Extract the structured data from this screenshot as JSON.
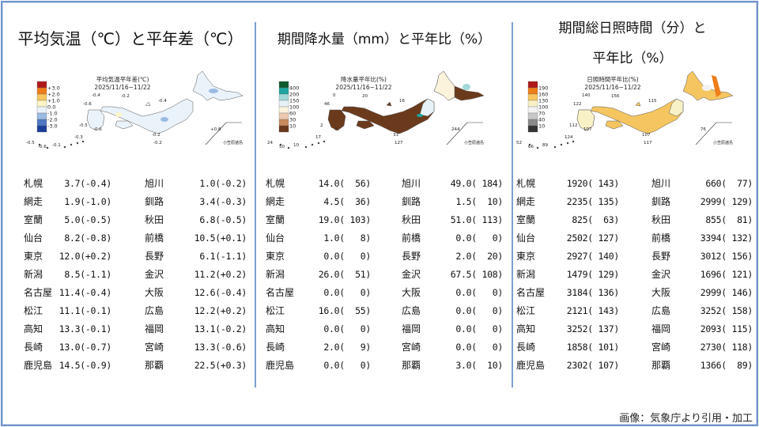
{
  "panels": [
    {
      "title_lines": [
        "平均気温（℃）と平年差（℃）"
      ],
      "map": {
        "title": "平均気温平年差(℃)",
        "period": "2025/11/16~11/22",
        "legend": [
          "+3.0",
          "+2.0",
          "+1.0",
          "0.0",
          "-1.0",
          "-2.0",
          "-3.0"
        ],
        "legend_colors": [
          "#b0181c",
          "#ee7d1a",
          "#f7c660",
          "#fbf4c5",
          "#eaf3fa",
          "#9bbbe2",
          "#4f78c2",
          "#1c3e9a"
        ],
        "land_color": "#eaf3fa",
        "labels": [
          "-0.4",
          "-0.2",
          "-0.4",
          "-0.6",
          "-0.5",
          "-0.6",
          "-0.2",
          "-0.2",
          "-0.5",
          "-0.6",
          "-0.1",
          "-0.3",
          "+0.8"
        ],
        "islands_label": "小笠原諸島"
      },
      "rows": [
        [
          "札幌",
          "3.7(-0.4)",
          "旭川",
          "1.0(-0.2)"
        ],
        [
          "網走",
          "1.9(-1.0)",
          "釧路",
          "3.4(-0.3)"
        ],
        [
          "室蘭",
          "5.0(-0.5)",
          "秋田",
          "6.8(-0.5)"
        ],
        [
          "仙台",
          "8.2(-0.8)",
          "前橋",
          "10.5(+0.1)"
        ],
        [
          "東京",
          "12.0(+0.2)",
          "長野",
          "6.1(-1.1)"
        ],
        [
          "新潟",
          "8.5(-1.1)",
          "金沢",
          "11.2(+0.2)"
        ],
        [
          "名古屋",
          "11.4(-0.4)",
          "大阪",
          "12.6(-0.4)"
        ],
        [
          "松江",
          "11.1(-0.1)",
          "広島",
          "12.2(+0.2)"
        ],
        [
          "高知",
          "13.3(-0.1)",
          "福岡",
          "13.1(-0.2)"
        ],
        [
          "長崎",
          "13.0(-0.7)",
          "宮崎",
          "13.3(-0.6)"
        ],
        [
          "鹿児島",
          "14.5(-0.9)",
          "那覇",
          "22.5(+0.3)"
        ]
      ]
    },
    {
      "title_lines": [
        "期間降水量（mm）と平年比（%）"
      ],
      "map": {
        "title": "降水量平年比(%)",
        "period": "2025/11/16~11/22",
        "legend": [
          "400",
          "200",
          "150",
          "100",
          "60",
          "30",
          "10"
        ],
        "legend_colors": [
          "#0d5a2e",
          "#1fa5a0",
          "#a4d8d8",
          "#e6f2f7",
          "#fbf3dc",
          "#ecc9b0",
          "#c98a5e",
          "#6b3a1c"
        ],
        "land_color": "#6b3a1c",
        "labels": [
          "0",
          "20",
          "16",
          "46",
          "2",
          "0",
          "33",
          "127",
          "24",
          "50",
          "10",
          "17",
          "244"
        ],
        "islands_label": "小笠原諸島"
      },
      "rows": [
        [
          "札幌",
          "14.0(  56)",
          "旭川",
          "49.0( 184)"
        ],
        [
          "網走",
          "4.5(  36)",
          "釧路",
          "1.5(  10)"
        ],
        [
          "室蘭",
          "19.0( 103)",
          "秋田",
          "51.0( 113)"
        ],
        [
          "仙台",
          "1.0(   8)",
          "前橋",
          "0.0(   0)"
        ],
        [
          "東京",
          "0.0(   0)",
          "長野",
          "2.0(  20)"
        ],
        [
          "新潟",
          "26.0(  51)",
          "金沢",
          "67.5( 108)"
        ],
        [
          "名古屋",
          "0.0(   0)",
          "大阪",
          "0.0(   0)"
        ],
        [
          "松江",
          "16.0(  55)",
          "広島",
          "0.0(   0)"
        ],
        [
          "高知",
          "0.0(   0)",
          "福岡",
          "0.0(   0)"
        ],
        [
          "長崎",
          "2.0(   9)",
          "宮崎",
          "0.0(   0)"
        ],
        [
          "鹿児島",
          "0.0(   0)",
          "那覇",
          "3.0(  10)"
        ]
      ]
    },
    {
      "title_lines": [
        "期間総日照時間（分）と",
        "平年比（%）"
      ],
      "map": {
        "title": "日照時間平年比(%)",
        "period": "2025/11/16~11/22",
        "legend": [
          "190",
          "160",
          "130",
          "100",
          "70",
          "40",
          "10"
        ],
        "legend_colors": [
          "#b0181c",
          "#ee7d1a",
          "#f7c660",
          "#f8f1c6",
          "#f3f3f3",
          "#c8c8c8",
          "#8a8a8a",
          "#333333"
        ],
        "land_color": "#f5c660",
        "labels": [
          "140",
          "156",
          "115",
          "122",
          "112",
          "107",
          "107",
          "117",
          "52",
          "66",
          "89",
          "124",
          "76"
        ],
        "islands_label": "小笠原諸島"
      },
      "rows": [
        [
          "札幌",
          "1920( 143)",
          "旭川",
          "660(  77)"
        ],
        [
          "網走",
          "2235( 135)",
          "釧路",
          "2999( 129)"
        ],
        [
          "室蘭",
          "825(  63)",
          "秋田",
          "855(  81)"
        ],
        [
          "仙台",
          "2502( 127)",
          "前橋",
          "3394( 132)"
        ],
        [
          "東京",
          "2927( 140)",
          "長野",
          "3012( 156)"
        ],
        [
          "新潟",
          "1479( 129)",
          "金沢",
          "1696( 121)"
        ],
        [
          "名古屋",
          "3184( 136)",
          "大阪",
          "2999( 146)"
        ],
        [
          "松江",
          "2121( 143)",
          "広島",
          "3252( 158)"
        ],
        [
          "高知",
          "3252( 137)",
          "福岡",
          "2093( 115)"
        ],
        [
          "長崎",
          "1858( 101)",
          "宮崎",
          "2730( 118)"
        ],
        [
          "鹿児島",
          "2302( 107)",
          "那覇",
          "1366(  89)"
        ]
      ]
    }
  ],
  "footer": "画像：気象庁より引用・加工"
}
